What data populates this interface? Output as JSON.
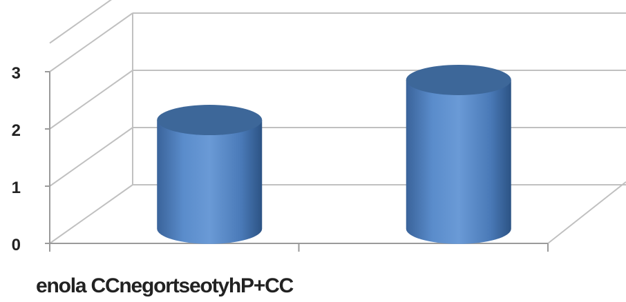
{
  "chart_data": {
    "type": "bar",
    "style": "3d-cylinder",
    "categories": [
      "enola CC",
      "negortseotyhP+CC"
    ],
    "series": [
      {
        "values": [
          1.9,
          2.6
        ]
      }
    ],
    "ylim": [
      0,
      3
    ],
    "yticks": [
      "0",
      "1",
      "2",
      "3"
    ],
    "grid": true,
    "legend": "none",
    "colors": {
      "bar": "#4f81bd",
      "bar_top": "#3d6799",
      "gridline": "#c0c0c0",
      "axis": "#9a9a9a"
    }
  }
}
